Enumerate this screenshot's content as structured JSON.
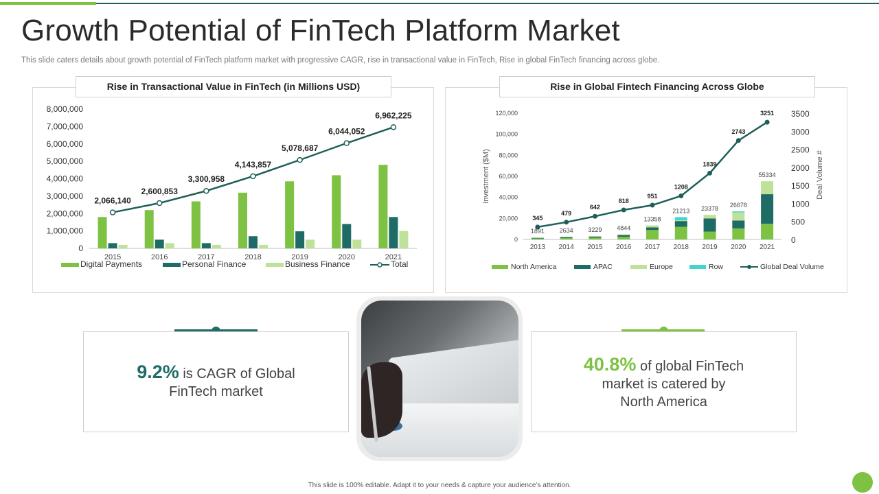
{
  "page": {
    "title": "Growth Potential of FinTech Platform Market",
    "subtitle": "This slide caters details about growth potential of FinTech platform market with progressive CAGR, rise in transactional value in FinTech, Rise in global FinTech financing across globe.",
    "footer": "This slide is 100% editable.  Adapt it to your needs & capture your audience’s attention."
  },
  "colors": {
    "dark_teal": "#1f6b66",
    "green": "#7dc242",
    "light_green": "#bfe19a",
    "cyan": "#3fd6d0",
    "line": "#1f5f5b"
  },
  "stats": {
    "left": {
      "number": "9.2%",
      "text_1": " is CAGR  of Global",
      "text_2": "FinTech market"
    },
    "right": {
      "number": "40.8%",
      "text_1": " of global FinTech",
      "text_2": "market is catered by",
      "text_3": "North America"
    }
  },
  "photo": {
    "icon": "tablet-finance-photo"
  },
  "chart_data": [
    {
      "type": "bar",
      "title": "Rise in Transactional Value in FinTech (in Millions USD)",
      "categories": [
        "2015",
        "2016",
        "2017",
        "2018",
        "2019",
        "2020",
        "2021"
      ],
      "series": [
        {
          "name": "Digital Payments",
          "values": [
            1800000,
            2200000,
            2700000,
            3200000,
            3850000,
            4200000,
            4800000
          ]
        },
        {
          "name": "Personal Finance",
          "values": [
            300000,
            500000,
            300000,
            700000,
            980000,
            1400000,
            1800000
          ]
        },
        {
          "name": "Business Finance",
          "values": [
            200000,
            300000,
            200000,
            200000,
            500000,
            500000,
            1000000
          ]
        },
        {
          "name": "Total",
          "type": "line",
          "values": [
            2066140,
            2600853,
            3300958,
            4143857,
            5078687,
            6044052,
            6962225
          ]
        }
      ],
      "total_labels": [
        "2,066,140",
        "2,600,853",
        "3,300,958",
        "4,143,857",
        "5,078,687",
        "6,044,052",
        "6,962,225"
      ],
      "yticks": [
        "0",
        "1,000,000",
        "2,000,000",
        "3,000,000",
        "4,000,000",
        "5,000,000",
        "6,000,000",
        "7,000,000",
        "8,000,000"
      ],
      "ylim": [
        0,
        8000000
      ],
      "legend": "bottom",
      "grid": false
    },
    {
      "type": "bar",
      "stacked": true,
      "title": "Rise in Global Fintech Financing Across Globe",
      "categories": [
        "2013",
        "2014",
        "2015",
        "2016",
        "2017",
        "2018",
        "2019",
        "2020",
        "2021"
      ],
      "ylabel": "Investment  ($M)",
      "y2label": "Deal Volume #",
      "ylim": [
        0,
        120000
      ],
      "y2lim": [
        0,
        3500
      ],
      "yticks": [
        "0",
        "20,000",
        "40,000",
        "60,000",
        "80,000",
        "100,000",
        "120,000"
      ],
      "y2ticks": [
        "0",
        "500",
        "1000",
        "1500",
        "2000",
        "2500",
        "3000",
        "3500"
      ],
      "series": [
        {
          "name": "North America",
          "values": [
            900,
            1300,
            1700,
            2500,
            9000,
            12000,
            7500,
            10500,
            15000
          ]
        },
        {
          "name": "APAC",
          "values": [
            600,
            900,
            1000,
            1700,
            2500,
            5500,
            12500,
            7500,
            28000
          ]
        },
        {
          "name": "Europe",
          "values": [
            391,
            434,
            529,
            644,
            1858,
            700,
            3378,
            7678,
            12334
          ]
        },
        {
          "name": "Row",
          "values": [
            0,
            0,
            0,
            0,
            0,
            3013,
            0,
            1000,
            0
          ]
        },
        {
          "name": "Global Deal Volume",
          "type": "line",
          "axis": "y2",
          "values": [
            345,
            479,
            642,
            818,
            951,
            1208,
            1839,
            2743,
            3251
          ]
        }
      ],
      "investment_totals": [
        "1891",
        "2634",
        "3229",
        "4844",
        "13358",
        "21213",
        "23378",
        "26678",
        "55334"
      ],
      "deal_labels": [
        "345",
        "479",
        "642",
        "818",
        "951",
        "1208",
        "1839",
        "2743",
        "3251"
      ],
      "legend": "bottom",
      "grid": false
    }
  ]
}
